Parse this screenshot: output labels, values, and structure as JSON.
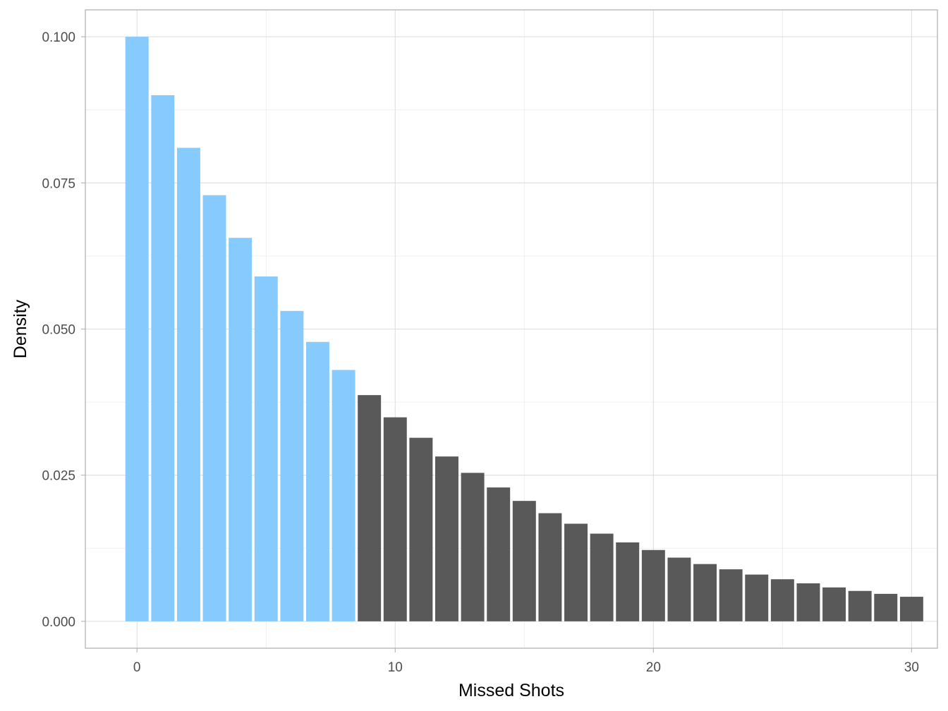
{
  "chart_data": {
    "type": "bar",
    "title": "",
    "xlabel": "Missed Shots",
    "ylabel": "Density",
    "x": [
      0,
      1,
      2,
      3,
      4,
      5,
      6,
      7,
      8,
      9,
      10,
      11,
      12,
      13,
      14,
      15,
      16,
      17,
      18,
      19,
      20,
      21,
      22,
      23,
      24,
      25,
      26,
      27,
      28,
      29,
      30
    ],
    "values": [
      0.1,
      0.09,
      0.081,
      0.0729,
      0.0656,
      0.059,
      0.0531,
      0.0478,
      0.043,
      0.0387,
      0.0349,
      0.0314,
      0.0282,
      0.0254,
      0.0229,
      0.0206,
      0.0185,
      0.0167,
      0.015,
      0.0135,
      0.0122,
      0.0109,
      0.0098,
      0.0089,
      0.008,
      0.0072,
      0.0065,
      0.0058,
      0.0052,
      0.0047,
      0.0042
    ],
    "highlight_max_x": 8,
    "colors": {
      "highlight": "#87cafe",
      "other": "#595959",
      "panel_border": "#b3b3b3"
    },
    "xlim": [
      -2,
      31
    ],
    "ylim": [
      -0.0046,
      0.1046
    ],
    "xticks": [
      0,
      10,
      20,
      30
    ],
    "xtick_labels": [
      "0",
      "10",
      "20",
      "30"
    ],
    "yticks": [
      0,
      0.025,
      0.05,
      0.075,
      0.1
    ],
    "ytick_labels": [
      "0.000",
      "0.025",
      "0.050",
      "0.075",
      "0.100"
    ],
    "grid": true,
    "legend": "none"
  }
}
